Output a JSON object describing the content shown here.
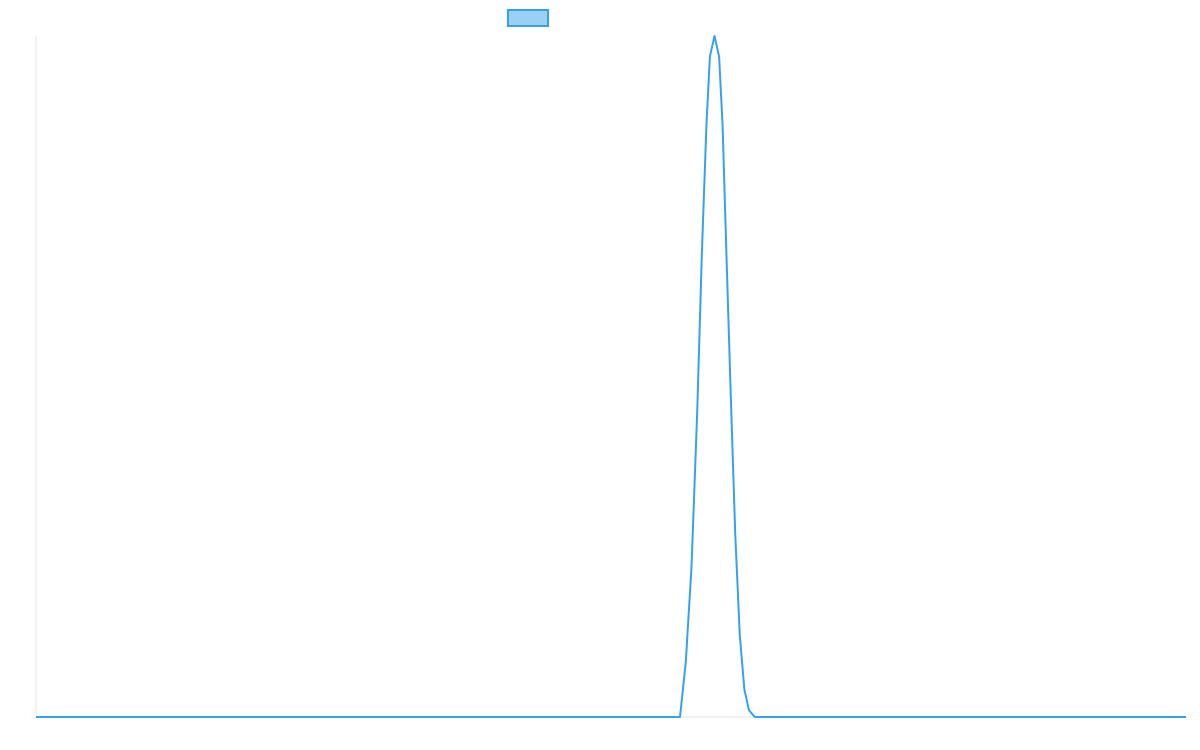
{
  "chart_data": {
    "type": "line",
    "title": "",
    "xlabel": "",
    "ylabel": "",
    "legend": {
      "placement": "top-center",
      "entries": [
        {
          "label": "",
          "color": "#36a2eb",
          "fill": "#9ad0f5"
        }
      ]
    },
    "grid": false,
    "xlim": [
      0,
      100
    ],
    "ylim": [
      0,
      1
    ],
    "series": [
      {
        "color": "#36a2eb",
        "x": [
          0,
          55,
          56,
          56.5,
          57,
          57.5,
          57.9,
          58.3,
          58.6,
          59.0,
          59.4,
          59.7,
          60.0,
          60.4,
          60.8,
          61.2,
          61.6,
          62,
          62.5,
          63,
          64,
          100
        ],
        "y": [
          0,
          0,
          0,
          0.08,
          0.22,
          0.45,
          0.68,
          0.87,
          0.97,
          1.0,
          0.97,
          0.87,
          0.7,
          0.48,
          0.27,
          0.12,
          0.04,
          0.01,
          0,
          0,
          0,
          0
        ]
      }
    ]
  }
}
